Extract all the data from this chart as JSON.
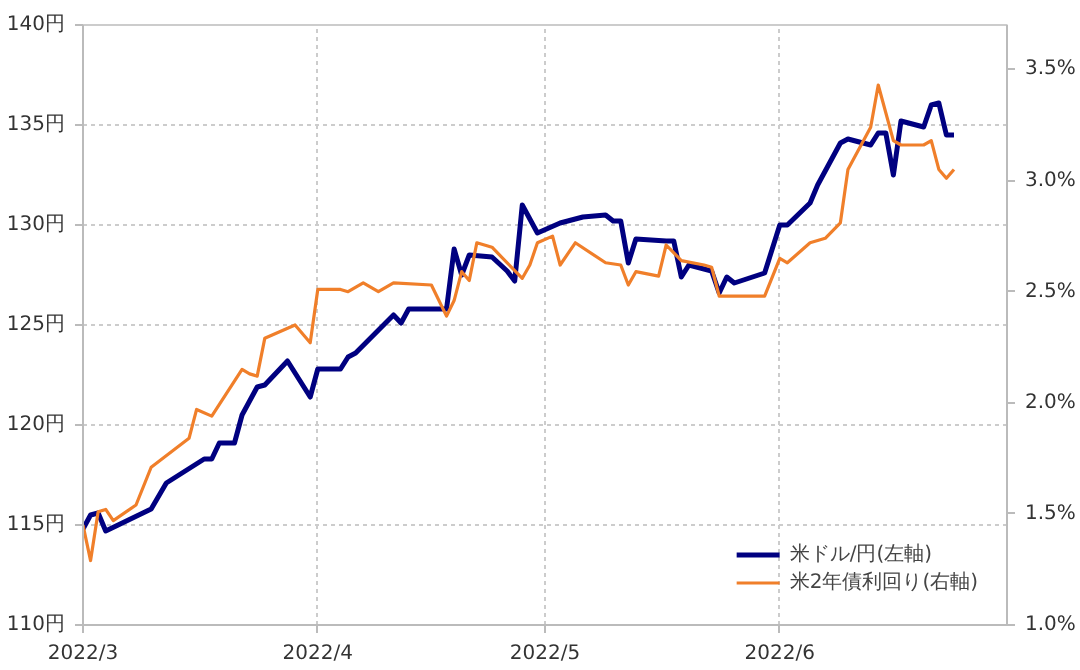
{
  "chart_data": {
    "type": "line",
    "xlim": [
      "2022-03-01",
      "2022-07-01"
    ],
    "xticks": [
      {
        "value": "2022-03-01",
        "label": "2022/3"
      },
      {
        "value": "2022-04-01",
        "label": "2022/4"
      },
      {
        "value": "2022-05-01",
        "label": "2022/5"
      },
      {
        "value": "2022-06-01",
        "label": "2022/6"
      }
    ],
    "ylim": [
      110,
      140
    ],
    "yticks": [
      {
        "value": 110,
        "label": "110円"
      },
      {
        "value": 115,
        "label": "115円"
      },
      {
        "value": 120,
        "label": "120円"
      },
      {
        "value": 125,
        "label": "125円"
      },
      {
        "value": 130,
        "label": "130円"
      },
      {
        "value": 135,
        "label": "135円"
      },
      {
        "value": 140,
        "label": "140円"
      }
    ],
    "y2lim": [
      1.0,
      3.7
    ],
    "y2ticks": [
      {
        "value": 1.0,
        "label": "1.0%"
      },
      {
        "value": 1.5,
        "label": "1.5%"
      },
      {
        "value": 2.0,
        "label": "2.0%"
      },
      {
        "value": 2.5,
        "label": "2.5%"
      },
      {
        "value": 3.0,
        "label": "3.0%"
      },
      {
        "value": 3.5,
        "label": "3.5%"
      }
    ],
    "grid": true,
    "legend": "bottom right",
    "line_style": "solid",
    "series": [
      {
        "name": "米ドル/円(左軸)",
        "color": "#000080",
        "x": [
          "2022-03-01",
          "2022-03-02",
          "2022-03-03",
          "2022-03-04",
          "2022-03-10",
          "2022-03-12",
          "2022-03-17",
          "2022-03-18",
          "2022-03-19",
          "2022-03-21",
          "2022-03-22",
          "2022-03-24",
          "2022-03-25",
          "2022-03-28",
          "2022-03-31",
          "2022-04-01",
          "2022-04-04",
          "2022-04-05",
          "2022-04-06",
          "2022-04-11",
          "2022-04-12",
          "2022-04-13",
          "2022-04-18",
          "2022-04-19",
          "2022-04-20",
          "2022-04-21",
          "2022-04-24",
          "2022-04-26",
          "2022-04-27",
          "2022-04-28",
          "2022-04-30",
          "2022-05-03",
          "2022-05-06",
          "2022-05-09",
          "2022-05-10",
          "2022-05-11",
          "2022-05-12",
          "2022-05-13",
          "2022-05-17",
          "2022-05-18",
          "2022-05-19",
          "2022-05-20",
          "2022-05-23",
          "2022-05-24",
          "2022-05-25",
          "2022-05-26",
          "2022-05-30",
          "2022-06-01",
          "2022-06-02",
          "2022-06-05",
          "2022-06-06",
          "2022-06-09",
          "2022-06-10",
          "2022-06-13",
          "2022-06-14",
          "2022-06-15",
          "2022-06-16",
          "2022-06-17",
          "2022-06-20",
          "2022-06-21",
          "2022-06-22",
          "2022-06-23",
          "2022-06-24"
        ],
        "values": [
          114.8,
          115.5,
          115.6,
          114.7,
          115.8,
          117.1,
          118.3,
          118.3,
          119.1,
          119.1,
          120.5,
          121.9,
          122.0,
          123.2,
          121.4,
          122.8,
          122.8,
          123.4,
          123.6,
          125.5,
          125.1,
          125.8,
          125.8,
          128.8,
          127.5,
          128.5,
          128.4,
          127.7,
          127.2,
          131.0,
          129.6,
          130.1,
          130.4,
          130.5,
          130.2,
          130.2,
          128.1,
          129.3,
          129.2,
          129.2,
          127.4,
          128.0,
          127.7,
          126.6,
          127.4,
          127.1,
          127.6,
          130.0,
          130.0,
          131.1,
          132.0,
          134.1,
          134.3,
          134.0,
          134.6,
          134.6,
          132.5,
          135.2,
          134.9,
          136.0,
          136.1,
          134.5,
          134.5
        ]
      },
      {
        "name": "米2年債利回り(右軸)",
        "color": "#f07f2a",
        "axis": "y2",
        "x": [
          "2022-03-01",
          "2022-03-02",
          "2022-03-03",
          "2022-03-04",
          "2022-03-05",
          "2022-03-08",
          "2022-03-10",
          "2022-03-15",
          "2022-03-16",
          "2022-03-18",
          "2022-03-22",
          "2022-03-23",
          "2022-03-24",
          "2022-03-25",
          "2022-03-29",
          "2022-03-31",
          "2022-04-01",
          "2022-04-04",
          "2022-04-05",
          "2022-04-07",
          "2022-04-09",
          "2022-04-11",
          "2022-04-16",
          "2022-04-18",
          "2022-04-19",
          "2022-04-20",
          "2022-04-21",
          "2022-04-22",
          "2022-04-24",
          "2022-04-28",
          "2022-04-29",
          "2022-04-30",
          "2022-05-02",
          "2022-05-03",
          "2022-05-05",
          "2022-05-09",
          "2022-05-11",
          "2022-05-12",
          "2022-05-13",
          "2022-05-16",
          "2022-05-17",
          "2022-05-19",
          "2022-05-22",
          "2022-05-23",
          "2022-05-24",
          "2022-05-30",
          "2022-06-01",
          "2022-06-02",
          "2022-06-05",
          "2022-06-07",
          "2022-06-09",
          "2022-06-10",
          "2022-06-13",
          "2022-06-14",
          "2022-06-16",
          "2022-06-17",
          "2022-06-20",
          "2022-06-21",
          "2022-06-22",
          "2022-06-23",
          "2022-06-24"
        ],
        "values": [
          1.45,
          1.29,
          1.51,
          1.52,
          1.47,
          1.54,
          1.71,
          1.84,
          1.97,
          1.94,
          2.15,
          2.13,
          2.12,
          2.29,
          2.35,
          2.27,
          2.51,
          2.51,
          2.5,
          2.54,
          2.5,
          2.54,
          2.53,
          2.39,
          2.46,
          2.59,
          2.55,
          2.72,
          2.7,
          2.56,
          2.62,
          2.72,
          2.75,
          2.62,
          2.72,
          2.63,
          2.62,
          2.53,
          2.59,
          2.57,
          2.71,
          2.64,
          2.62,
          2.61,
          2.48,
          2.48,
          2.65,
          2.63,
          2.72,
          2.74,
          2.81,
          3.05,
          3.24,
          3.43,
          3.18,
          3.16,
          3.16,
          3.18,
          3.05,
          3.01,
          3.05
        ]
      }
    ]
  }
}
